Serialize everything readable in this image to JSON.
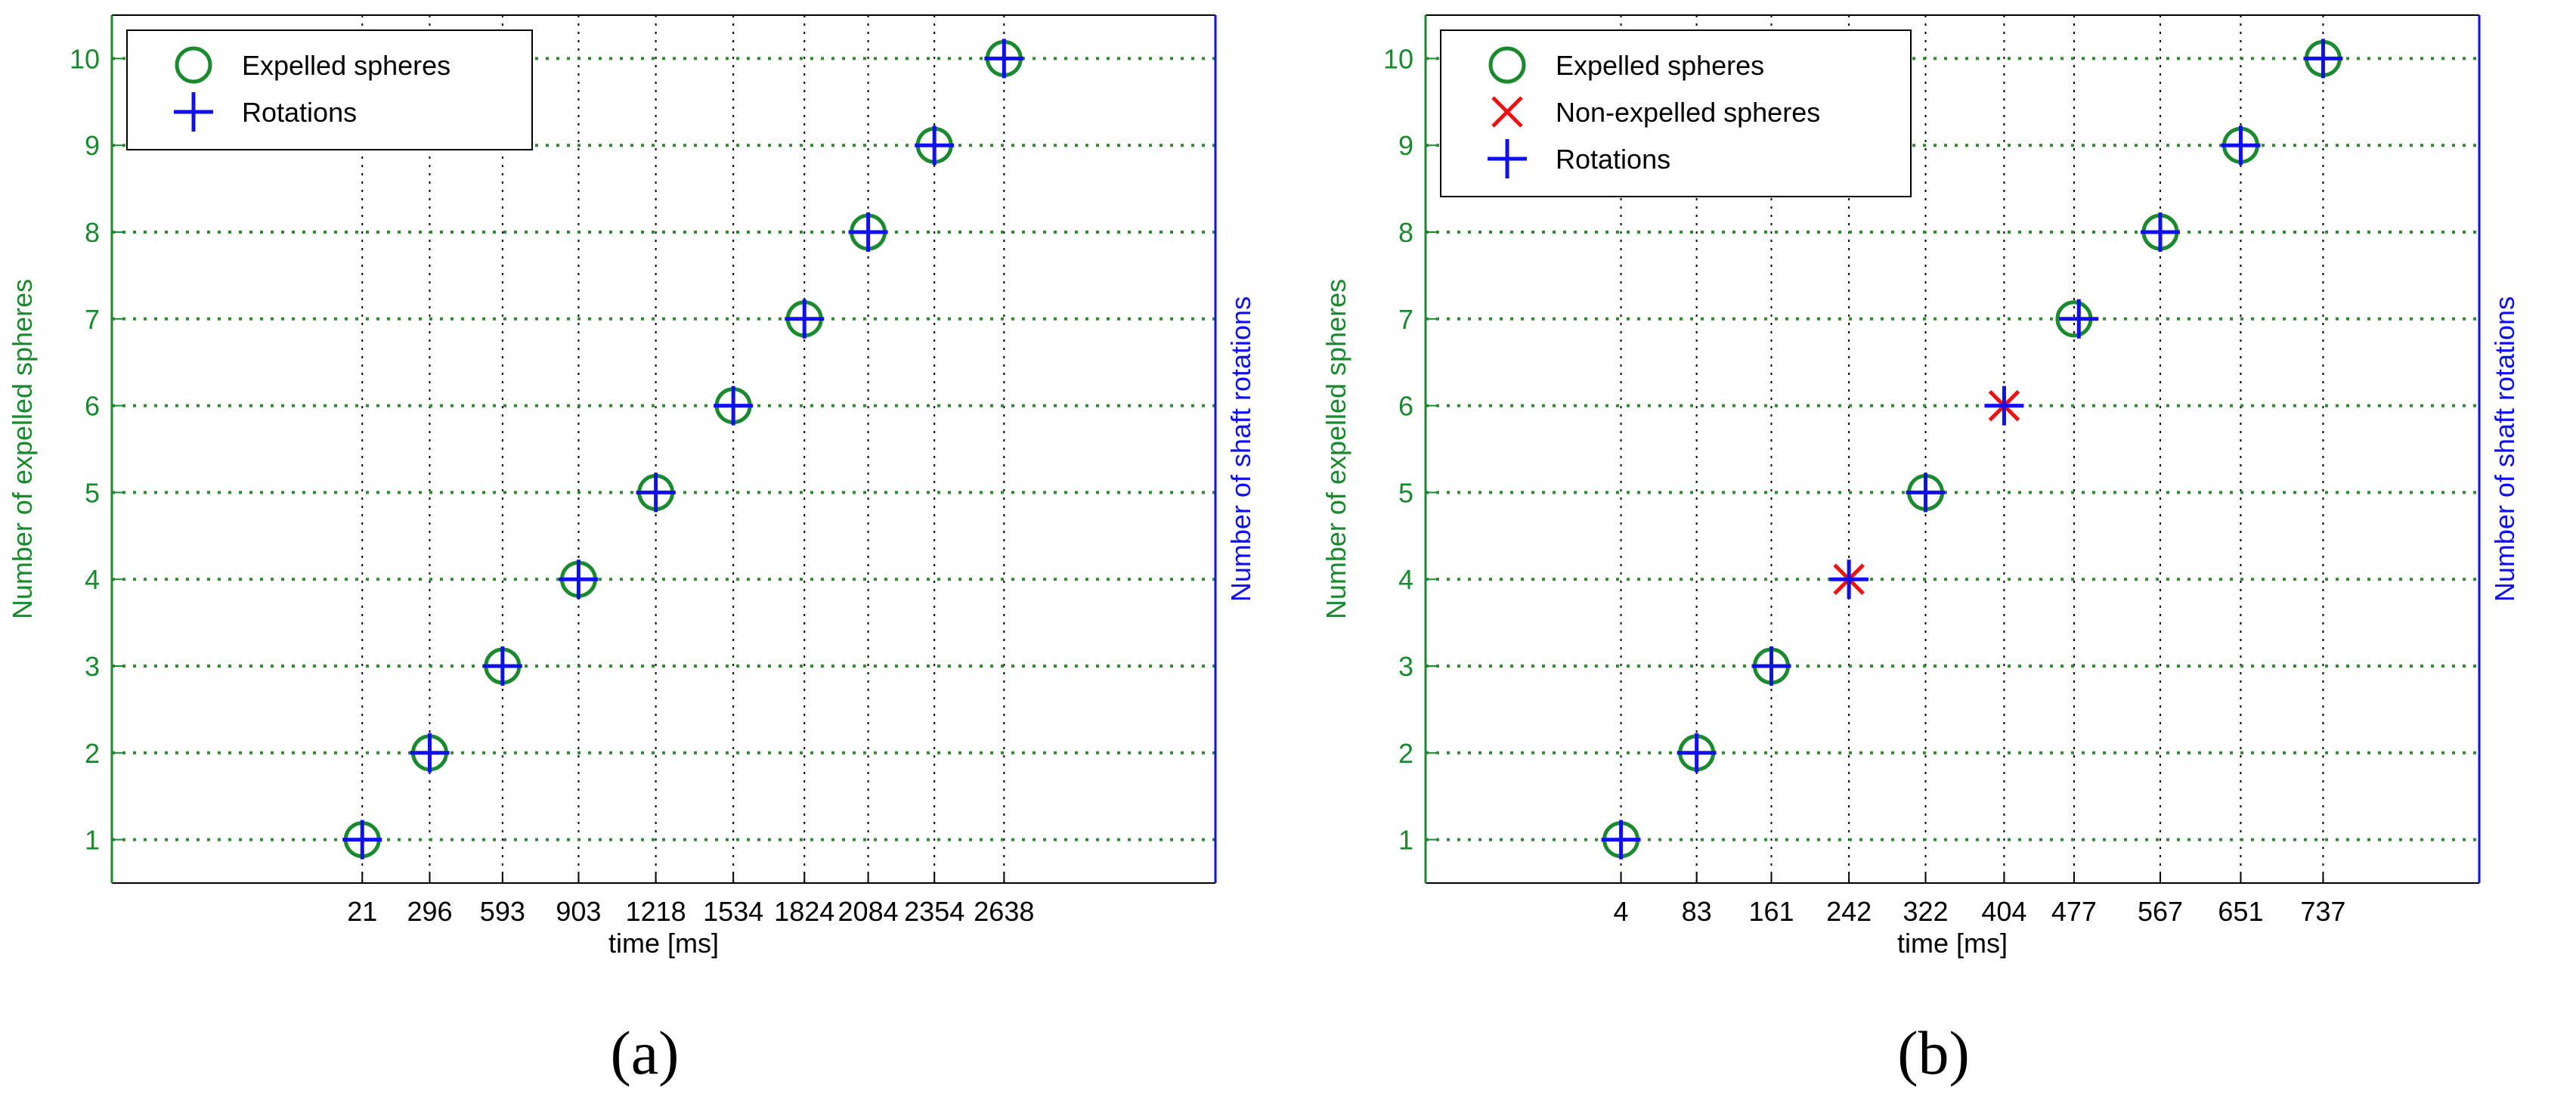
{
  "colors": {
    "green": "#1a8a2e",
    "blue": "#1010ee",
    "red": "#ee1111",
    "grid": "#2e8b2e",
    "axis": "#000000"
  },
  "chart_data": [
    {
      "type": "scatter",
      "panel_label": "(a)",
      "xlabel": "time [ms]",
      "ylabel_left": "Number of expelled spheres",
      "ylabel_right": "Number of shaft rotations",
      "x_ticks": [
        "21",
        "296",
        "593",
        "903",
        "1218",
        "1534",
        "1824",
        "2084",
        "2354",
        "2638"
      ],
      "y_ticks": [
        "1",
        "2",
        "3",
        "4",
        "5",
        "6",
        "7",
        "8",
        "9",
        "10"
      ],
      "xlim": [
        -1000,
        3500
      ],
      "ylim": [
        0.5,
        10.5
      ],
      "grid": true,
      "legend_position": "top-left",
      "legend": [
        "Expelled spheres",
        "Rotations"
      ],
      "series": [
        {
          "name": "Expelled spheres",
          "marker": "circle",
          "color": "green",
          "points": [
            [
              21,
              1
            ],
            [
              296,
              2
            ],
            [
              593,
              3
            ],
            [
              903,
              4
            ],
            [
              1218,
              5
            ],
            [
              1534,
              6
            ],
            [
              1824,
              7
            ],
            [
              2084,
              8
            ],
            [
              2354,
              9
            ],
            [
              2638,
              10
            ]
          ]
        },
        {
          "name": "Rotations",
          "marker": "plus",
          "color": "blue",
          "points": [
            [
              21,
              1
            ],
            [
              296,
              2
            ],
            [
              593,
              3
            ],
            [
              903,
              4
            ],
            [
              1218,
              5
            ],
            [
              1534,
              6
            ],
            [
              1824,
              7
            ],
            [
              2084,
              8
            ],
            [
              2354,
              9
            ],
            [
              2638,
              10
            ]
          ]
        }
      ]
    },
    {
      "type": "scatter",
      "panel_label": "(b)",
      "xlabel": "time [ms]",
      "ylabel_left": "Number of expelled spheres",
      "ylabel_right": "Number of shaft rotations",
      "x_ticks": [
        "4",
        "83",
        "161",
        "242",
        "322",
        "404",
        "477",
        "567",
        "651",
        "737"
      ],
      "y_ticks": [
        "1",
        "2",
        "3",
        "4",
        "5",
        "6",
        "7",
        "8",
        "9",
        "10"
      ],
      "xlim": [
        -200,
        900
      ],
      "ylim": [
        0.5,
        10.5
      ],
      "grid": true,
      "legend_position": "top-left",
      "legend": [
        "Expelled spheres",
        "Non-expelled spheres",
        "Rotations"
      ],
      "series": [
        {
          "name": "Expelled spheres",
          "marker": "circle",
          "color": "green",
          "points": [
            [
              4,
              1
            ],
            [
              83,
              2
            ],
            [
              161,
              3
            ],
            [
              322,
              5
            ],
            [
              477,
              7
            ],
            [
              567,
              8
            ],
            [
              651,
              9
            ],
            [
              737,
              10
            ]
          ]
        },
        {
          "name": "Non-expelled spheres",
          "marker": "x",
          "color": "red",
          "points": [
            [
              242,
              4
            ],
            [
              404,
              6
            ]
          ]
        },
        {
          "name": "Rotations",
          "marker": "plus",
          "color": "blue",
          "points": [
            [
              4,
              1
            ],
            [
              83,
              2
            ],
            [
              161,
              3
            ],
            [
              242,
              4
            ],
            [
              322,
              5
            ],
            [
              404,
              6
            ],
            [
              482,
              7
            ],
            [
              567,
              8
            ],
            [
              651,
              9
            ],
            [
              737,
              10
            ]
          ]
        }
      ]
    }
  ]
}
